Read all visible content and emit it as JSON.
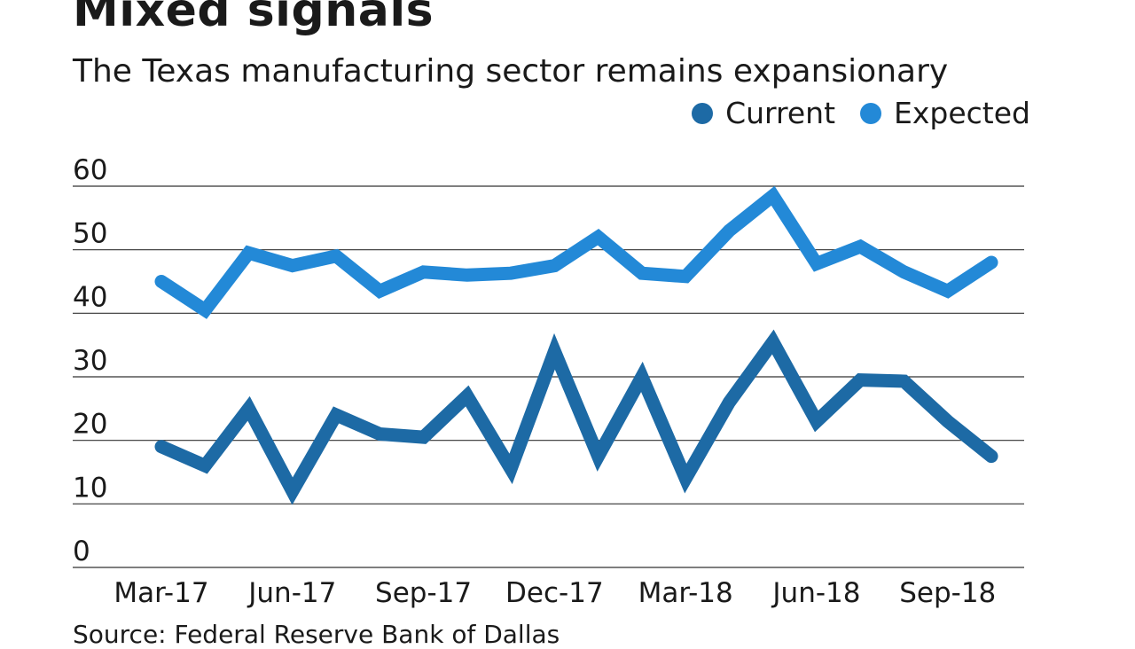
{
  "title": "Mixed signals",
  "subtitle": "The Texas manufacturing sector remains expansionary",
  "source": "Source: Federal Reserve Bank of Dallas",
  "legend": {
    "current_label": "Current",
    "expected_label": "Expected"
  },
  "colors": {
    "current": "#1d6aa5",
    "expected": "#2389d7",
    "grid": "#333333"
  },
  "chart_data": {
    "type": "line",
    "title": "Mixed signals",
    "subtitle": "The Texas manufacturing sector remains expansionary",
    "xlabel": "",
    "ylabel": "",
    "ylim": [
      0,
      60
    ],
    "yticks": [
      "0",
      "10",
      "20",
      "30",
      "40",
      "50",
      "60"
    ],
    "x": [
      "Mar-17",
      "Apr-17",
      "May-17",
      "Jun-17",
      "Jul-17",
      "Aug-17",
      "Sep-17",
      "Oct-17",
      "Nov-17",
      "Dec-17",
      "Jan-18",
      "Feb-18",
      "Mar-18",
      "Apr-18",
      "May-18",
      "Jun-18",
      "Jul-18",
      "Aug-18",
      "Sep-18",
      "Oct-18"
    ],
    "xtick_labels": [
      "Mar-17",
      "Jun-17",
      "Sep-17",
      "Dec-17",
      "Mar-18",
      "Jun-18",
      "Sep-18"
    ],
    "legend_position": "top-right",
    "grid": true,
    "series": [
      {
        "name": "Current",
        "values": [
          19,
          16,
          25,
          12,
          24,
          21,
          20.5,
          27,
          15.5,
          34,
          17.5,
          30,
          14,
          26,
          35.5,
          23,
          29.5,
          29.3,
          23,
          17.5
        ]
      },
      {
        "name": "Expected",
        "values": [
          45,
          40.5,
          49.5,
          47.5,
          49,
          43.5,
          46.5,
          46,
          46.3,
          47.5,
          52,
          46.3,
          45.8,
          53,
          58.5,
          47.8,
          50.5,
          46.5,
          43.5,
          48
        ]
      }
    ]
  }
}
